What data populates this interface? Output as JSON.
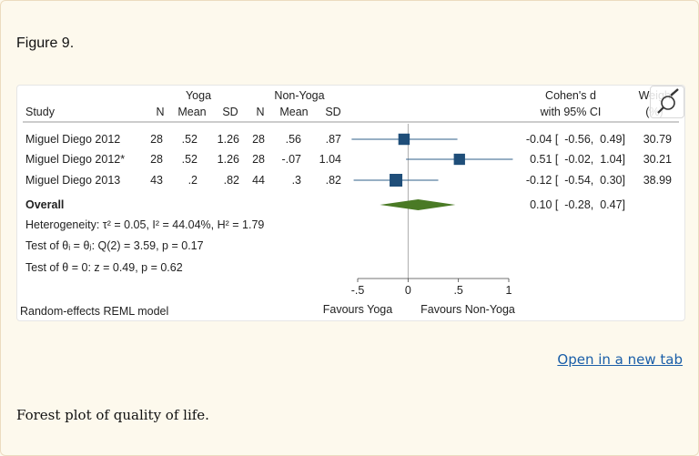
{
  "figure": {
    "label": "Figure 9.",
    "open_link": "Open in a new tab",
    "caption": "Forest plot of quality of life."
  },
  "headers": {
    "group_yoga": "Yoga",
    "group_nonyoga": "Non-Yoga",
    "study": "Study",
    "n": "N",
    "mean": "Mean",
    "sd": "SD",
    "effect": "Cohen's d",
    "ci": "with 95% CI",
    "weight": "Weight",
    "weight_unit": "(%)"
  },
  "studies": [
    {
      "name": "Miguel Diego 2012",
      "yoga_n": "28",
      "yoga_mean": ".52",
      "yoga_sd": "1.26",
      "non_n": "28",
      "non_mean": ".56",
      "non_sd": ".87",
      "ci_text": "-0.04 [  -0.56,  0.49]",
      "weight": "30.79"
    },
    {
      "name": "Miguel Diego 2012*",
      "yoga_n": "28",
      "yoga_mean": ".52",
      "yoga_sd": "1.26",
      "non_n": "28",
      "non_mean": "-.07",
      "non_sd": "1.04",
      "ci_text": "0.51 [  -0.02,  1.04]",
      "weight": "30.21"
    },
    {
      "name": "Miguel Diego 2013",
      "yoga_n": "43",
      "yoga_mean": ".2",
      "yoga_sd": ".82",
      "non_n": "44",
      "non_mean": ".3",
      "non_sd": ".82",
      "ci_text": "-0.12 [  -0.54,  0.30]",
      "weight": "38.99"
    }
  ],
  "overall": {
    "label": "Overall",
    "ci_text": "0.10 [  -0.28,  0.47]"
  },
  "stats": {
    "heterogeneity": "Heterogeneity: τ² = 0.05, I² = 44.04%, H² = 1.79",
    "test_theta_i": "Test of θᵢ = θⱼ: Q(2) = 3.59, p = 0.17",
    "test_theta": "Test of θ = 0: z = 0.49, p = 0.62"
  },
  "model": "Random-effects REML model",
  "favours_left": "Favours Yoga",
  "favours_right": "Favours Non-Yoga",
  "colors": {
    "marker": "#1f4e79",
    "diamond": "#4a7a25",
    "line": "#2f5f8a"
  },
  "chart_data": {
    "type": "forest",
    "title": "",
    "xlabel_left": "Favours Yoga",
    "xlabel_right": "Favours Non-Yoga",
    "xlim": [
      -0.5,
      1
    ],
    "xticks": [
      -0.5,
      0,
      0.5,
      1
    ],
    "xtick_labels": [
      "-.5",
      "0",
      ".5",
      "1"
    ],
    "points": [
      {
        "study": "Miguel Diego 2012",
        "d": -0.04,
        "lo": -0.56,
        "hi": 0.49,
        "weight": 30.79
      },
      {
        "study": "Miguel Diego 2012*",
        "d": 0.51,
        "lo": -0.02,
        "hi": 1.04,
        "weight": 30.21
      },
      {
        "study": "Miguel Diego 2013",
        "d": -0.12,
        "lo": -0.54,
        "hi": 0.3,
        "weight": 38.99
      }
    ],
    "overall": {
      "d": 0.1,
      "lo": -0.28,
      "hi": 0.47
    }
  }
}
